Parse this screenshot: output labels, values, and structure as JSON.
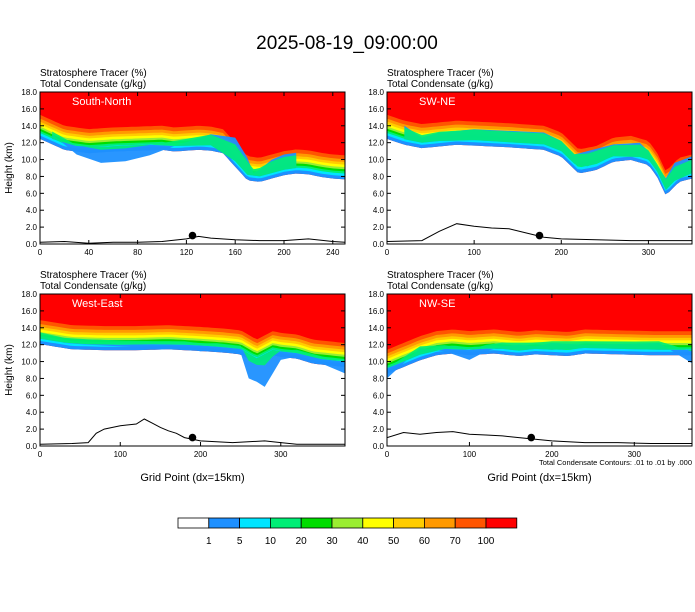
{
  "page_title": "2025-08-19_09:00:00",
  "chart_data": [
    {
      "type": "heatmap",
      "title": "South-North",
      "left_titles": [
        "Stratosphere Tracer   (%)",
        "Total Condensate   (g/kg)"
      ],
      "ylabel": "Height (km)",
      "xlabel": "",
      "xlim": [
        0,
        250
      ],
      "ylim": [
        0,
        18
      ],
      "xticks": [
        "0",
        "40",
        "80",
        "120",
        "160",
        "200",
        "240"
      ],
      "yticks": [
        "0.0",
        "2.0",
        "4.0",
        "6.0",
        "8.0",
        "10.0",
        "12.0",
        "14.0",
        "16.0",
        "18.0"
      ],
      "boundary_x": [
        0,
        20,
        40,
        60,
        80,
        100,
        110,
        120,
        130,
        140,
        150,
        160,
        170,
        180,
        190,
        200,
        210,
        220,
        230,
        240,
        250
      ],
      "boundary_y": [
        15.3,
        14.0,
        13.6,
        13.8,
        13.9,
        14.0,
        13.8,
        13.9,
        14.0,
        13.9,
        13.6,
        12.0,
        10.4,
        10.2,
        10.6,
        11.0,
        11.2,
        11.1,
        10.8,
        10.6,
        10.5
      ],
      "plume_x": [
        10,
        30,
        50,
        70,
        90,
        110,
        140,
        160,
        170,
        175,
        180,
        190,
        200,
        210
      ],
      "plume_y": [
        13.0,
        10.6,
        9.6,
        9.8,
        10.5,
        11.6,
        13.0,
        12.6,
        10.2,
        8.4,
        8.8,
        10.0,
        10.6,
        10.8
      ],
      "terrain_x": [
        0,
        20,
        40,
        60,
        80,
        100,
        120,
        130,
        140,
        160,
        180,
        200,
        220,
        240,
        250
      ],
      "terrain_y": [
        0.2,
        0.3,
        0.1,
        0.2,
        0.2,
        0.3,
        0.6,
        0.9,
        0.7,
        0.5,
        0.4,
        0.4,
        0.6,
        0.3,
        0.2
      ],
      "marker": {
        "x": 125,
        "y": 1.0
      }
    },
    {
      "type": "heatmap",
      "title": "SW-NE",
      "left_titles": [
        "Stratosphere Tracer   (%)",
        "Total Condensate   (g/kg)"
      ],
      "ylabel": "",
      "xlabel": "",
      "xlim": [
        0,
        350
      ],
      "ylim": [
        0,
        18
      ],
      "xticks": [
        "0",
        "100",
        "200",
        "300"
      ],
      "yticks": [
        "0.0",
        "2.0",
        "4.0",
        "6.0",
        "8.0",
        "10.0",
        "12.0",
        "14.0",
        "16.0",
        "18.0"
      ],
      "boundary_x": [
        0,
        20,
        40,
        60,
        80,
        100,
        140,
        180,
        200,
        220,
        240,
        260,
        280,
        300,
        310,
        320,
        335,
        350
      ],
      "boundary_y": [
        15.3,
        14.6,
        14.2,
        14.4,
        14.6,
        14.5,
        14.3,
        14.0,
        13.2,
        11.2,
        11.6,
        12.6,
        12.8,
        12.2,
        10.8,
        8.6,
        10.2,
        10.6
      ],
      "plume_x": [
        20,
        40,
        60,
        100,
        180,
        200,
        215,
        230,
        260,
        290,
        300,
        310,
        320,
        330,
        350
      ],
      "plume_y": [
        14.0,
        12.6,
        13.2,
        13.6,
        13.2,
        12.2,
        10.6,
        11.0,
        11.8,
        12.0,
        11.0,
        9.2,
        7.8,
        9.6,
        10.4
      ],
      "terrain_x": [
        0,
        40,
        60,
        80,
        100,
        120,
        140,
        160,
        180,
        200,
        240,
        280,
        320,
        350
      ],
      "terrain_y": [
        0.3,
        0.4,
        1.5,
        2.4,
        2.1,
        1.9,
        1.8,
        1.3,
        0.8,
        0.6,
        0.5,
        0.4,
        0.4,
        0.4
      ],
      "marker": {
        "x": 175,
        "y": 1.0
      }
    },
    {
      "type": "heatmap",
      "title": "West-East",
      "left_titles": [
        "Stratosphere Tracer   (%)",
        "Total Condensate   (g/kg)"
      ],
      "ylabel": "Height (km)",
      "xlabel": "Grid Point (dx=15km)",
      "xlim": [
        0,
        380
      ],
      "ylim": [
        0,
        18
      ],
      "xticks": [
        "0",
        "100",
        "200",
        "300"
      ],
      "yticks": [
        "0.0",
        "2.0",
        "4.0",
        "6.0",
        "8.0",
        "10.0",
        "12.0",
        "14.0",
        "16.0",
        "18.0"
      ],
      "boundary_x": [
        0,
        40,
        80,
        120,
        160,
        200,
        230,
        250,
        270,
        290,
        300,
        320,
        340,
        360,
        380
      ],
      "boundary_y": [
        14.9,
        14.3,
        14.2,
        14.2,
        14.3,
        14.1,
        13.9,
        13.7,
        12.6,
        13.6,
        13.4,
        13.2,
        12.6,
        12.4,
        12.2
      ],
      "plume_x": [
        0,
        30,
        60,
        100,
        140,
        180,
        200,
        220,
        250,
        260,
        270,
        280,
        290,
        300,
        320,
        350,
        380
      ],
      "plume_y": [
        13.0,
        12.2,
        12.0,
        11.8,
        11.6,
        11.6,
        11.2,
        11.4,
        11.0,
        8.0,
        7.6,
        7.0,
        8.6,
        10.2,
        10.6,
        9.8,
        8.6
      ],
      "terrain_x": [
        0,
        40,
        60,
        70,
        80,
        100,
        120,
        130,
        140,
        150,
        160,
        170,
        180,
        200,
        240,
        280,
        300,
        320,
        380
      ],
      "terrain_y": [
        0.2,
        0.3,
        0.4,
        1.5,
        2.0,
        2.4,
        2.6,
        3.2,
        2.7,
        2.2,
        1.8,
        1.5,
        1.0,
        0.6,
        0.4,
        0.6,
        0.4,
        0.2,
        0.2
      ],
      "marker": {
        "x": 190,
        "y": 1.0
      }
    },
    {
      "type": "heatmap",
      "title": "NW-SE",
      "left_titles": [
        "Stratosphere Tracer   (%)",
        "Total Condensate   (g/kg)"
      ],
      "ylabel": "",
      "xlabel": "Grid Point (dx=15km)",
      "note": "Total Condensate Contours: .01 to .01 by .000",
      "xlim": [
        0,
        370
      ],
      "ylim": [
        0,
        18
      ],
      "xticks": [
        "0",
        "100",
        "200",
        "300"
      ],
      "yticks": [
        "0.0",
        "2.0",
        "4.0",
        "6.0",
        "8.0",
        "10.0",
        "12.0",
        "14.0",
        "16.0",
        "18.0"
      ],
      "boundary_x": [
        0,
        20,
        40,
        60,
        80,
        100,
        130,
        160,
        180,
        200,
        220,
        240,
        280,
        320,
        370
      ],
      "boundary_y": [
        11.4,
        12.2,
        13.0,
        13.6,
        13.8,
        13.6,
        13.8,
        13.5,
        13.7,
        13.6,
        13.5,
        13.8,
        13.7,
        13.6,
        13.6
      ],
      "plume_x": [
        0,
        20,
        40,
        70,
        100,
        120,
        140,
        160,
        180,
        200,
        240,
        300,
        330,
        370
      ],
      "plume_y": [
        8.0,
        9.8,
        11.6,
        11.2,
        10.2,
        11.2,
        11.8,
        12.0,
        11.8,
        12.2,
        12.0,
        12.1,
        12.2,
        9.8
      ],
      "terrain_x": [
        0,
        20,
        40,
        60,
        80,
        100,
        120,
        140,
        160,
        180,
        200,
        240,
        280,
        320,
        370
      ],
      "terrain_y": [
        1.0,
        1.6,
        1.4,
        1.6,
        1.7,
        1.4,
        1.3,
        1.2,
        1.0,
        0.8,
        0.6,
        0.4,
        0.4,
        0.3,
        0.3
      ],
      "marker": {
        "x": 175,
        "y": 1.0
      }
    }
  ],
  "colorbar": {
    "labels": [
      "1",
      "5",
      "10",
      "20",
      "30",
      "40",
      "50",
      "60",
      "70",
      "100"
    ],
    "colors": [
      "#ffffff",
      "#1e90ff",
      "#00e5ff",
      "#00ee76",
      "#00dd00",
      "#9aee32",
      "#ffff00",
      "#ffcc00",
      "#ff9900",
      "#ff5500",
      "#ff0000"
    ]
  }
}
